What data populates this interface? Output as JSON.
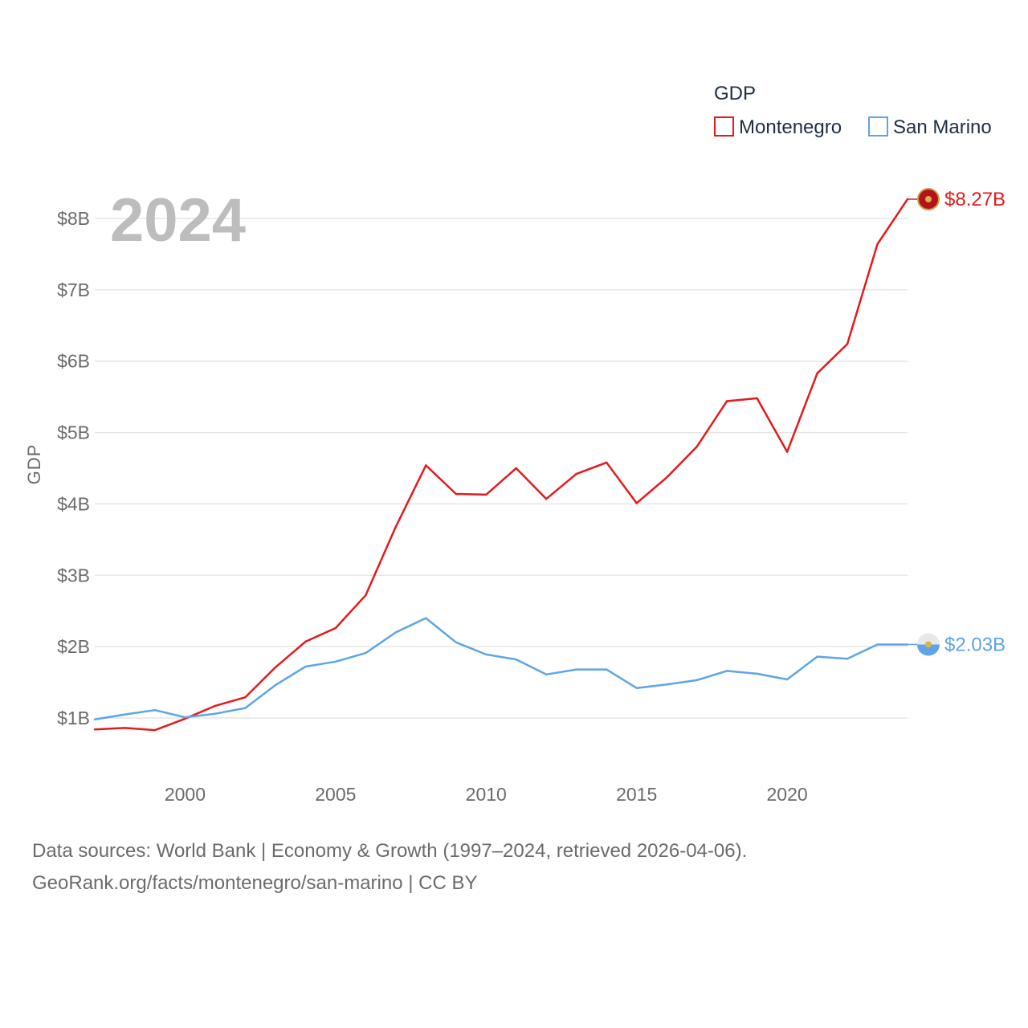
{
  "chart_data": {
    "type": "line",
    "year_stamp": "2024",
    "ylabel": "GDP",
    "xlabel": "",
    "xlim": [
      1997,
      2024
    ],
    "ylim": [
      0.3,
      8.7
    ],
    "y_ticks": [
      {
        "value": 1,
        "label": "$1B"
      },
      {
        "value": 2,
        "label": "$2B"
      },
      {
        "value": 3,
        "label": "$3B"
      },
      {
        "value": 4,
        "label": "$4B"
      },
      {
        "value": 5,
        "label": "$5B"
      },
      {
        "value": 6,
        "label": "$6B"
      },
      {
        "value": 7,
        "label": "$7B"
      },
      {
        "value": 8,
        "label": "$8B"
      }
    ],
    "x_ticks": [
      {
        "value": 2000,
        "label": "2000"
      },
      {
        "value": 2005,
        "label": "2005"
      },
      {
        "value": 2010,
        "label": "2010"
      },
      {
        "value": 2015,
        "label": "2015"
      },
      {
        "value": 2020,
        "label": "2020"
      }
    ],
    "legend": {
      "title": "GDP",
      "position": "top-right"
    },
    "x": [
      1997,
      1998,
      1999,
      2000,
      2001,
      2002,
      2003,
      2004,
      2005,
      2006,
      2007,
      2008,
      2009,
      2010,
      2011,
      2012,
      2013,
      2014,
      2015,
      2016,
      2017,
      2018,
      2019,
      2020,
      2021,
      2022,
      2023,
      2024
    ],
    "series": [
      {
        "name": "Montenegro",
        "color": "#e41a1c",
        "end_label": "$8.27B",
        "flag_icon": "montenegro-flag-icon",
        "values": [
          0.84,
          0.86,
          0.83,
          0.99,
          1.17,
          1.29,
          1.71,
          2.07,
          2.26,
          2.72,
          3.68,
          4.54,
          4.14,
          4.13,
          4.5,
          4.07,
          4.42,
          4.58,
          4.01,
          4.37,
          4.8,
          5.44,
          5.48,
          4.73,
          5.83,
          6.24,
          7.64,
          8.27
        ]
      },
      {
        "name": "San Marino",
        "color": "#5ea4e6",
        "end_label": "$2.03B",
        "flag_icon": "san-marino-flag-icon",
        "values": [
          0.98,
          1.05,
          1.11,
          1.01,
          1.06,
          1.14,
          1.46,
          1.72,
          1.79,
          1.91,
          2.2,
          2.4,
          2.06,
          1.89,
          1.82,
          1.61,
          1.68,
          1.68,
          1.42,
          1.47,
          1.53,
          1.66,
          1.62,
          1.54,
          1.86,
          1.83,
          2.03,
          2.03
        ]
      }
    ]
  },
  "footer": {
    "line1": "Data sources: World Bank | Economy & Growth (1997–2024, retrieved 2026-04-06).",
    "line2": "GeoRank.org/facts/montenegro/san-marino | CC BY"
  }
}
